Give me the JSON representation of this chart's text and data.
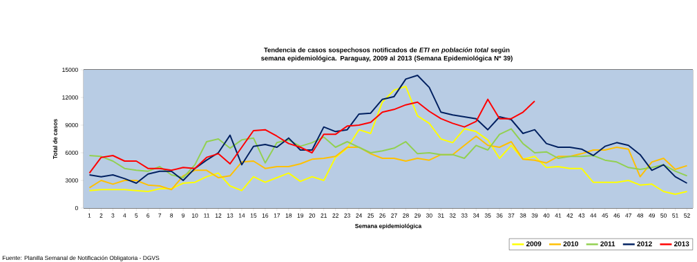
{
  "chart_data": {
    "type": "line",
    "title": "Tendencia de casos sospechosos notificados de *ETI en población total* según semana epidemiológica. Paraguay, 2009 al 2013 (Semana Epidemiológica Nº 39)",
    "xlabel": "Semana epidemiológica",
    "ylabel": "Total de casos",
    "annotations": [
      "Fuente: Planilla Semanal de Notificación Obligatoria - DGVS"
    ],
    "categories": [
      "1",
      "2",
      "3",
      "4",
      "5",
      "6",
      "7",
      "8",
      "9",
      "10",
      "11",
      "12",
      "13",
      "14",
      "15",
      "16",
      "17",
      "18",
      "19",
      "20",
      "21",
      "22",
      "23",
      "24",
      "25",
      "26",
      "27",
      "28",
      "29",
      "30",
      "31",
      "32",
      "33",
      "34",
      "35",
      "36",
      "37",
      "38",
      "39",
      "40",
      "41",
      "42",
      "43",
      "44",
      "45",
      "46",
      "47",
      "48",
      "49",
      "50",
      "51",
      "52"
    ],
    "ylim": [
      0,
      15000
    ],
    "yticks": [
      0,
      3000,
      6000,
      9000,
      12000,
      15000
    ],
    "grid": "y",
    "legend": "bottom right",
    "marker": "none",
    "line_style": "solid",
    "series": [
      {
        "name": "2009",
        "color": "#ffff00",
        "values": [
          1900,
          2000,
          2000,
          2000,
          1900,
          1800,
          2100,
          2100,
          2700,
          2800,
          3400,
          3800,
          2400,
          1900,
          3400,
          2800,
          3300,
          3800,
          2900,
          3400,
          3000,
          5500,
          6500,
          8500,
          8100,
          11500,
          12800,
          13200,
          10000,
          9200,
          7500,
          7100,
          8600,
          8300,
          7400,
          5400,
          6800,
          5300,
          5600,
          4400,
          4500,
          4300,
          4300,
          2800,
          2800,
          2800,
          3000,
          2500,
          2600,
          1800,
          1500,
          1800
        ]
      },
      {
        "name": "2010",
        "color": "#ffc000",
        "values": [
          2200,
          3000,
          2600,
          3000,
          3000,
          2500,
          2400,
          2000,
          3500,
          4100,
          4100,
          3300,
          3500,
          5000,
          5100,
          4300,
          4500,
          4500,
          4800,
          5300,
          5400,
          5600,
          6600,
          6600,
          5900,
          5400,
          5400,
          5100,
          5400,
          5200,
          5800,
          5800,
          6800,
          7800,
          6800,
          6600,
          7200,
          5300,
          5200,
          4900,
          5600,
          5600,
          5900,
          6300,
          6300,
          6600,
          6400,
          3400,
          5000,
          5400,
          4200,
          4600
        ]
      },
      {
        "name": "2011",
        "color": "#92d050",
        "values": [
          5700,
          5600,
          5100,
          4300,
          4100,
          4000,
          4500,
          3600,
          3300,
          4700,
          7200,
          7500,
          6500,
          7400,
          7600,
          4900,
          7100,
          7400,
          6700,
          7100,
          7700,
          6600,
          7200,
          6600,
          6000,
          6200,
          6500,
          7200,
          5900,
          6000,
          5800,
          5800,
          5400,
          6800,
          6300,
          8000,
          8600,
          7000,
          6000,
          6100,
          5400,
          5600,
          5600,
          5700,
          5200,
          5000,
          4400,
          4200,
          4400,
          4700,
          4000,
          3500
        ]
      },
      {
        "name": "2012",
        "color": "#002060",
        "values": [
          3600,
          3400,
          3600,
          3200,
          2700,
          3700,
          4000,
          4000,
          3000,
          4300,
          5200,
          6000,
          7900,
          4700,
          6700,
          6900,
          6600,
          7600,
          6300,
          6300,
          8800,
          8300,
          8500,
          10200,
          10300,
          11800,
          12100,
          14000,
          14400,
          13100,
          10400,
          10100,
          9900,
          9700,
          8500,
          9900,
          9600,
          8100,
          8500,
          7000,
          6600,
          6600,
          6400,
          5700,
          6700,
          7100,
          6800,
          5800,
          4100,
          4700,
          3400,
          2700
        ]
      },
      {
        "name": "2013",
        "color": "#ff0000",
        "values": [
          3800,
          5500,
          5700,
          5100,
          5100,
          4300,
          4300,
          4100,
          4400,
          4300,
          5500,
          5900,
          4800,
          6600,
          8400,
          8500,
          7800,
          7000,
          6600,
          6000,
          8000,
          8000,
          8900,
          9000,
          9300,
          10400,
          10700,
          11200,
          11500,
          10500,
          9700,
          9200,
          8800,
          9400,
          11800,
          9700,
          9700,
          10400,
          11600,
          null,
          null,
          null,
          null,
          null,
          null,
          null,
          null,
          null,
          null,
          null,
          null,
          null
        ]
      }
    ]
  }
}
